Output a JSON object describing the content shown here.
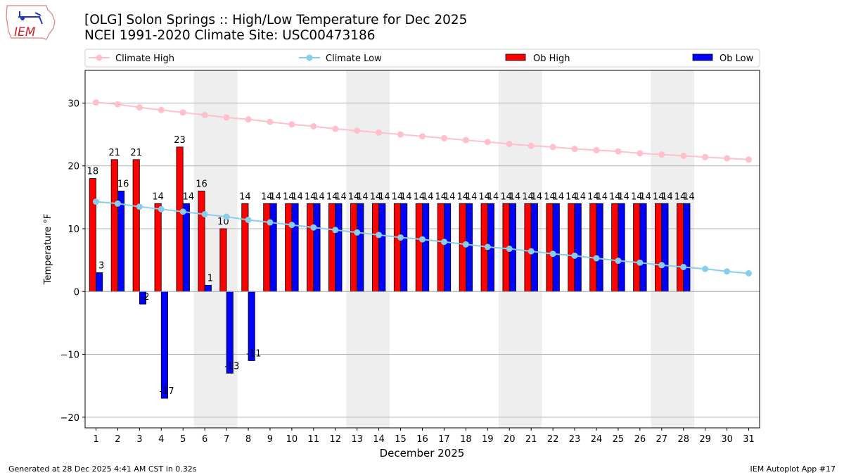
{
  "logo_text": "IEM",
  "title_line1": "[OLG] Solon Springs :: High/Low Temperature for Dec 2025",
  "title_line2": "NCEI 1991-2020 Climate Site: USC00473186",
  "footer_left": "Generated at 28 Dec 2025 4:41 AM CST in 0.32s",
  "footer_right": "IEM Autoplot App #17",
  "colors": {
    "climate_high": "#FFC0CB",
    "climate_low": "#87CEEB",
    "ob_high": "#FF0000",
    "ob_low": "#0000FF",
    "weekend": "#EEEEEE"
  },
  "chart_data": {
    "type": "bar",
    "xlabel": "December 2025",
    "ylabel": "Temperature °F",
    "xlim": [
      0.5,
      31.5
    ],
    "ylim": [
      -21.7,
      35.2
    ],
    "yticks": [
      -20,
      -10,
      0,
      10,
      20,
      30
    ],
    "grid": "horizontal",
    "legend_position": "top",
    "weekend_shading": [
      [
        5.5,
        7.5
      ],
      [
        12.5,
        14.5
      ],
      [
        19.5,
        21.5
      ],
      [
        26.5,
        28.5
      ]
    ],
    "x": [
      1,
      2,
      3,
      4,
      5,
      6,
      7,
      8,
      9,
      10,
      11,
      12,
      13,
      14,
      15,
      16,
      17,
      18,
      19,
      20,
      21,
      22,
      23,
      24,
      25,
      26,
      27,
      28,
      29,
      30,
      31
    ],
    "series": [
      {
        "name": "Climate High",
        "kind": "line",
        "values": [
          30.1,
          29.8,
          29.3,
          28.9,
          28.5,
          28.1,
          27.7,
          27.4,
          27.0,
          26.6,
          26.3,
          25.9,
          25.6,
          25.3,
          25.0,
          24.7,
          24.4,
          24.1,
          23.8,
          23.5,
          23.2,
          23.0,
          22.7,
          22.5,
          22.3,
          22.0,
          21.8,
          21.6,
          21.4,
          21.2,
          21.0
        ]
      },
      {
        "name": "Climate Low",
        "kind": "line",
        "values": [
          14.3,
          14.0,
          13.5,
          13.1,
          12.7,
          12.3,
          11.9,
          11.4,
          11.0,
          10.6,
          10.2,
          9.8,
          9.4,
          9.0,
          8.6,
          8.3,
          7.9,
          7.5,
          7.1,
          6.8,
          6.4,
          6.0,
          5.7,
          5.3,
          4.9,
          4.6,
          4.2,
          3.9,
          3.6,
          3.2,
          2.9
        ]
      },
      {
        "name": "Ob High",
        "kind": "bar",
        "values": [
          18,
          21,
          21,
          14,
          23,
          16,
          10,
          14,
          14,
          14,
          14,
          14,
          14,
          14,
          14,
          14,
          14,
          14,
          14,
          14,
          14,
          14,
          14,
          14,
          14,
          14,
          14,
          14,
          null,
          null,
          null
        ]
      },
      {
        "name": "Ob Low",
        "kind": "bar",
        "values": [
          3,
          16,
          -2,
          -17,
          14,
          1,
          -13,
          -11,
          14,
          14,
          14,
          14,
          14,
          14,
          14,
          14,
          14,
          14,
          14,
          14,
          14,
          14,
          14,
          14,
          14,
          14,
          14,
          14,
          null,
          null,
          null
        ]
      }
    ]
  }
}
